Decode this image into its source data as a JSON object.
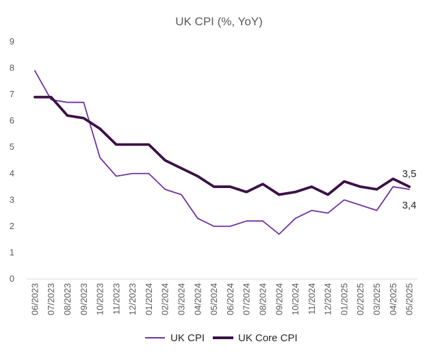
{
  "chart_data": {
    "type": "line",
    "title": "UK CPI (%, YoY)",
    "xlabel": "",
    "ylabel": "",
    "ylim": [
      0,
      9
    ],
    "yticks": [
      "0",
      "1",
      "2",
      "3",
      "4",
      "5",
      "6",
      "7",
      "8",
      "9"
    ],
    "categories": [
      "06/2023",
      "07/2023",
      "08/2023",
      "09/2023",
      "10/2023",
      "11/2023",
      "12/2023",
      "01/2024",
      "02/2024",
      "03/2024",
      "04/2024",
      "05/2024",
      "06/2024",
      "07/2024",
      "08/2024",
      "09/2024",
      "10/2024",
      "11/2024",
      "12/2024",
      "01/2025",
      "02/2025",
      "03/2025",
      "04/2025",
      "05/2025"
    ],
    "series": [
      {
        "name": "UK CPI",
        "color": "#7030A0",
        "values": [
          7.9,
          6.8,
          6.7,
          6.7,
          4.6,
          3.9,
          4.0,
          4.0,
          3.4,
          3.2,
          2.3,
          2.0,
          2.0,
          2.2,
          2.2,
          1.7,
          2.3,
          2.6,
          2.5,
          3.0,
          2.8,
          2.6,
          3.5,
          3.4
        ],
        "end_label": "3,4"
      },
      {
        "name": "UK Core CPI",
        "color": "#3B1245",
        "values": [
          6.9,
          6.9,
          6.2,
          6.1,
          5.7,
          5.1,
          5.1,
          5.1,
          4.5,
          4.2,
          3.9,
          3.5,
          3.5,
          3.3,
          3.6,
          3.2,
          3.3,
          3.5,
          3.2,
          3.7,
          3.5,
          3.4,
          3.8,
          3.5
        ],
        "end_label": "3,5"
      }
    ],
    "grid": false,
    "legend": "bottom"
  }
}
